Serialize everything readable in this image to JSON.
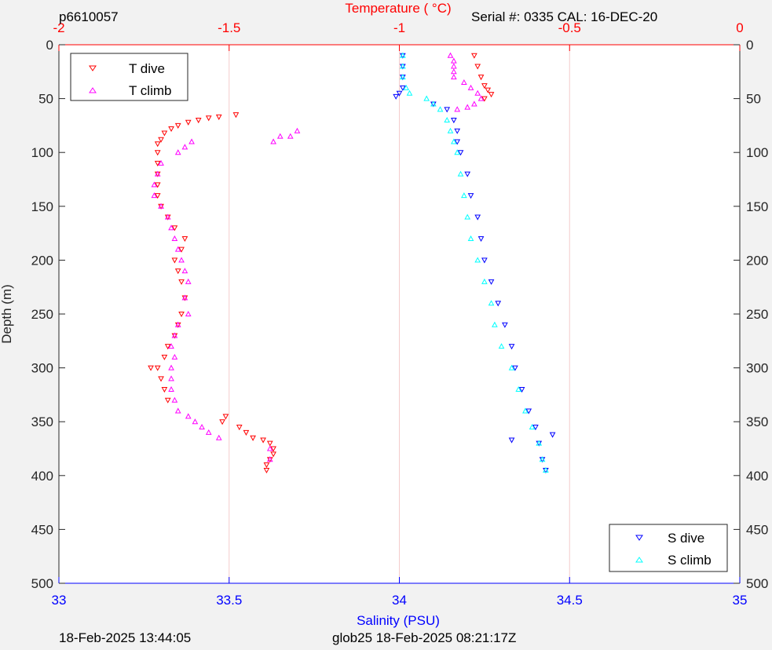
{
  "header": {
    "plot_id": "p6610057",
    "serial": "Serial #: 0335  CAL: 16-DEC-20"
  },
  "footer": {
    "left": "18-Feb-2025 13:44:05",
    "center": "glob25 18-Feb-2025 08:21:17Z"
  },
  "colors": {
    "t_dive": "#ff0000",
    "t_climb": "#ff00ff",
    "s_dive": "#0000ff",
    "s_climb": "#00ffff",
    "temperature_axis": "#ff0000",
    "salinity_axis": "#0000ff",
    "grid": "#f4cccc",
    "plot_background": "#ffffff",
    "figure_background": "#f2f2f2"
  },
  "chart_data": {
    "type": "scatter",
    "title": "",
    "ylabel": "Depth (m)",
    "ylim": [
      500,
      0
    ],
    "yticks": [
      0,
      50,
      100,
      150,
      200,
      250,
      300,
      350,
      400,
      450,
      500
    ],
    "y_reversed": true,
    "grid": "vertical lines at temperature ticks",
    "x_top": {
      "label": "Temperature (    °C)",
      "lim": [
        -2,
        0
      ],
      "ticks": [
        -2,
        -1.5,
        -1,
        -0.5,
        0
      ],
      "tick_labels": [
        "-2",
        "-1.5",
        "-1",
        "-0.5",
        "0"
      ]
    },
    "x_bottom": {
      "label": "Salinity (PSU)",
      "lim": [
        33,
        35
      ],
      "ticks": [
        33,
        33.5,
        34,
        34.5,
        35
      ],
      "tick_labels": [
        "33",
        "33.5",
        "34",
        "34.5",
        "35"
      ]
    },
    "legends": [
      {
        "position": "top-left",
        "entries": [
          "T dive",
          "T climb"
        ]
      },
      {
        "position": "bottom-right",
        "entries": [
          "S dive",
          "S climb"
        ]
      }
    ],
    "series": [
      {
        "name": "T dive",
        "axis": "temperature",
        "marker": "down-triangle",
        "points": [
          [
            -0.78,
            10
          ],
          [
            -0.77,
            20
          ],
          [
            -0.76,
            30
          ],
          [
            -0.75,
            38
          ],
          [
            -0.74,
            42
          ],
          [
            -0.73,
            46
          ],
          [
            -0.75,
            50
          ],
          [
            -1.48,
            65
          ],
          [
            -1.53,
            67
          ],
          [
            -1.56,
            68
          ],
          [
            -1.59,
            70
          ],
          [
            -1.62,
            72
          ],
          [
            -1.65,
            75
          ],
          [
            -1.67,
            78
          ],
          [
            -1.69,
            82
          ],
          [
            -1.7,
            88
          ],
          [
            -1.71,
            92
          ],
          [
            -1.71,
            100
          ],
          [
            -1.71,
            110
          ],
          [
            -1.71,
            120
          ],
          [
            -1.71,
            130
          ],
          [
            -1.71,
            140
          ],
          [
            -1.7,
            150
          ],
          [
            -1.68,
            160
          ],
          [
            -1.66,
            170
          ],
          [
            -1.63,
            180
          ],
          [
            -1.64,
            190
          ],
          [
            -1.66,
            200
          ],
          [
            -1.65,
            210
          ],
          [
            -1.64,
            220
          ],
          [
            -1.63,
            235
          ],
          [
            -1.64,
            250
          ],
          [
            -1.65,
            260
          ],
          [
            -1.66,
            270
          ],
          [
            -1.68,
            280
          ],
          [
            -1.69,
            290
          ],
          [
            -1.71,
            300
          ],
          [
            -1.73,
            300
          ],
          [
            -1.7,
            310
          ],
          [
            -1.69,
            320
          ],
          [
            -1.68,
            330
          ],
          [
            -1.51,
            345
          ],
          [
            -1.52,
            350
          ],
          [
            -1.47,
            355
          ],
          [
            -1.45,
            360
          ],
          [
            -1.43,
            365
          ],
          [
            -1.4,
            367
          ],
          [
            -1.38,
            370
          ],
          [
            -1.37,
            375
          ],
          [
            -1.37,
            380
          ],
          [
            -1.38,
            385
          ],
          [
            -1.39,
            390
          ],
          [
            -1.39,
            395
          ]
        ]
      },
      {
        "name": "T climb",
        "axis": "temperature",
        "marker": "up-triangle",
        "points": [
          [
            -0.85,
            10
          ],
          [
            -0.84,
            15
          ],
          [
            -0.84,
            20
          ],
          [
            -0.84,
            25
          ],
          [
            -0.84,
            30
          ],
          [
            -0.81,
            35
          ],
          [
            -0.79,
            40
          ],
          [
            -0.77,
            45
          ],
          [
            -0.76,
            50
          ],
          [
            -0.78,
            55
          ],
          [
            -0.8,
            58
          ],
          [
            -0.83,
            60
          ],
          [
            -1.3,
            80
          ],
          [
            -1.32,
            85
          ],
          [
            -1.35,
            85
          ],
          [
            -1.37,
            90
          ],
          [
            -1.61,
            90
          ],
          [
            -1.63,
            95
          ],
          [
            -1.65,
            100
          ],
          [
            -1.7,
            110
          ],
          [
            -1.71,
            120
          ],
          [
            -1.72,
            130
          ],
          [
            -1.72,
            140
          ],
          [
            -1.7,
            150
          ],
          [
            -1.68,
            160
          ],
          [
            -1.67,
            170
          ],
          [
            -1.66,
            180
          ],
          [
            -1.65,
            190
          ],
          [
            -1.64,
            200
          ],
          [
            -1.63,
            210
          ],
          [
            -1.62,
            220
          ],
          [
            -1.63,
            235
          ],
          [
            -1.62,
            250
          ],
          [
            -1.65,
            260
          ],
          [
            -1.66,
            270
          ],
          [
            -1.67,
            280
          ],
          [
            -1.66,
            290
          ],
          [
            -1.67,
            300
          ],
          [
            -1.67,
            310
          ],
          [
            -1.67,
            320
          ],
          [
            -1.66,
            330
          ],
          [
            -1.65,
            340
          ],
          [
            -1.62,
            345
          ],
          [
            -1.6,
            350
          ],
          [
            -1.58,
            355
          ],
          [
            -1.56,
            360
          ],
          [
            -1.53,
            365
          ],
          [
            -1.38,
            375
          ],
          [
            -1.38,
            385
          ]
        ]
      },
      {
        "name": "S dive",
        "axis": "salinity",
        "marker": "down-triangle",
        "points": [
          [
            34.01,
            10
          ],
          [
            34.01,
            20
          ],
          [
            34.01,
            30
          ],
          [
            34.01,
            40
          ],
          [
            34.0,
            45
          ],
          [
            33.99,
            48
          ],
          [
            34.1,
            55
          ],
          [
            34.14,
            60
          ],
          [
            34.16,
            70
          ],
          [
            34.17,
            80
          ],
          [
            34.17,
            90
          ],
          [
            34.18,
            100
          ],
          [
            34.2,
            120
          ],
          [
            34.21,
            140
          ],
          [
            34.23,
            160
          ],
          [
            34.24,
            180
          ],
          [
            34.25,
            200
          ],
          [
            34.27,
            220
          ],
          [
            34.29,
            240
          ],
          [
            34.31,
            260
          ],
          [
            34.33,
            280
          ],
          [
            34.34,
            300
          ],
          [
            34.36,
            320
          ],
          [
            34.38,
            340
          ],
          [
            34.4,
            355
          ],
          [
            34.41,
            370
          ],
          [
            34.42,
            385
          ],
          [
            34.43,
            395
          ],
          [
            34.45,
            362
          ],
          [
            34.33,
            367
          ]
        ]
      },
      {
        "name": "S climb",
        "axis": "salinity",
        "marker": "up-triangle",
        "points": [
          [
            34.01,
            10
          ],
          [
            34.01,
            20
          ],
          [
            34.01,
            30
          ],
          [
            34.02,
            40
          ],
          [
            34.03,
            45
          ],
          [
            34.08,
            50
          ],
          [
            34.1,
            55
          ],
          [
            34.12,
            60
          ],
          [
            34.14,
            70
          ],
          [
            34.15,
            80
          ],
          [
            34.16,
            90
          ],
          [
            34.17,
            100
          ],
          [
            34.18,
            120
          ],
          [
            34.19,
            140
          ],
          [
            34.2,
            160
          ],
          [
            34.21,
            180
          ],
          [
            34.23,
            200
          ],
          [
            34.25,
            220
          ],
          [
            34.27,
            240
          ],
          [
            34.28,
            260
          ],
          [
            34.3,
            280
          ],
          [
            34.33,
            300
          ],
          [
            34.35,
            320
          ],
          [
            34.37,
            340
          ],
          [
            34.39,
            355
          ],
          [
            34.41,
            370
          ],
          [
            34.42,
            385
          ],
          [
            34.43,
            395
          ]
        ]
      }
    ]
  }
}
